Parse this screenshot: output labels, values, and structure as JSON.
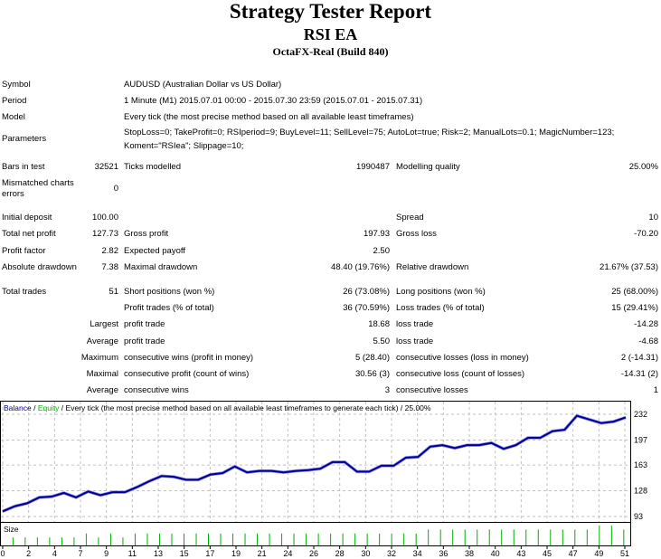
{
  "header": {
    "title": "Strategy Tester Report",
    "subtitle": "RSI EA",
    "server": "OctaFX-Real (Build 840)"
  },
  "info": [
    {
      "label": "Symbol",
      "value": "AUDUSD (Australian Dollar vs US Dollar)"
    },
    {
      "label": "Period",
      "value": "1 Minute (M1) 2015.07.01 00:00 - 2015.07.30 23:59 (2015.07.01 - 2015.07.31)"
    },
    {
      "label": "Model",
      "value": "Every tick (the most precise method based on all available least timeframes)"
    },
    {
      "label": "Parameters",
      "value": "StopLoss=0; TakeProfit=0; RSIperiod=9; BuyLevel=11; SellLevel=75; AutoLot=true; Risk=2; ManualLots=0.1; MagicNumber=123;",
      "value2": "Koment=\"RSIea\"; Slippage=10;"
    }
  ],
  "stats": [
    {
      "c1l": "Bars in test",
      "c1v": "32521",
      "c2l": "Ticks modelled",
      "c2v": "1990487",
      "c3l": "Modelling quality",
      "c3v": "25.00%"
    },
    {
      "c1l": "Mismatched charts",
      "c1l2": "errors",
      "c1v": "0"
    },
    {
      "c1l": "Initial deposit",
      "c1v": "100.00",
      "c3l": "Spread",
      "c3v": "10"
    },
    {
      "c1l": "Total net profit",
      "c1v": "127.73",
      "c2l": "Gross profit",
      "c2v": "197.93",
      "c3l": "Gross loss",
      "c3v": "-70.20"
    },
    {
      "c1l": "Profit factor",
      "c1v": "2.82",
      "c2l": "Expected payoff",
      "c2v": "2.50"
    },
    {
      "c1l": "Absolute drawdown",
      "c1v": "7.38",
      "c2l": "Maximal drawdown",
      "c2v": "48.40 (19.76%)",
      "c3l": "Relative drawdown",
      "c3v": "21.67% (37.53)"
    },
    {
      "c1l": "Total trades",
      "c1v": "51",
      "c2l": "Short positions (won %)",
      "c2v": "26 (73.08%)",
      "c3l": "Long positions (won %)",
      "c3v": "25 (68.00%)"
    },
    {
      "c2l": "Profit trades (% of total)",
      "c2v": "36 (70.59%)",
      "c3l": "Loss trades (% of total)",
      "c3v": "15 (29.41%)"
    },
    {
      "c1r": "Largest",
      "c2l": "profit trade",
      "c2v": "18.68",
      "c3l": "loss trade",
      "c3v": "-14.28"
    },
    {
      "c1r": "Average",
      "c2l": "profit trade",
      "c2v": "5.50",
      "c3l": "loss trade",
      "c3v": "-4.68"
    },
    {
      "c1r": "Maximum",
      "c2l": "consecutive wins (profit in money)",
      "c2v": "5 (28.40)",
      "c3l": "consecutive losses (loss in money)",
      "c3v": "2 (-14.31)"
    },
    {
      "c1r": "Maximal",
      "c2l": "consecutive profit (count of wins)",
      "c2v": "30.56 (3)",
      "c3l": "consecutive loss (count of losses)",
      "c3v": "-14.31 (2)"
    },
    {
      "c1r": "Average",
      "c2l": "consecutive wins",
      "c2v": "3",
      "c3l": "consecutive losses",
      "c3v": "1"
    }
  ],
  "chart_data": {
    "type": "line",
    "legend": {
      "balance": "Balance",
      "sep": " / ",
      "equity": "Equity",
      "rest": " / Every tick (the most precise method based on all available least timeframes to generate each tick) / 25.00%"
    },
    "size_label": "Size",
    "colors": {
      "balance": "#00008b",
      "equity": "#00b000",
      "size": "#00b000",
      "grid": "#c0c0c0"
    },
    "y_ticks": [
      93,
      128,
      163,
      197,
      232
    ],
    "ylim": [
      93,
      232
    ],
    "x_tick_labels": [
      "0",
      "2",
      "4",
      "7",
      "9",
      "11",
      "13",
      "15",
      "17",
      "19",
      "21",
      "24",
      "26",
      "28",
      "30",
      "32",
      "34",
      "36",
      "38",
      "40",
      "43",
      "45",
      "47",
      "49",
      "51"
    ],
    "xlim": [
      0,
      51
    ],
    "balance": [
      100,
      107,
      111,
      119,
      120,
      125,
      119,
      127,
      122,
      126,
      126,
      133,
      141,
      148,
      147,
      143,
      143,
      150,
      152,
      161,
      153,
      155,
      155,
      153,
      155,
      156,
      158,
      167,
      167,
      154,
      154,
      162,
      162,
      173,
      174,
      188,
      190,
      186,
      190,
      190,
      193,
      185,
      190,
      200,
      200,
      209,
      211,
      230,
      225,
      220,
      222,
      227.73
    ],
    "size_relative": [
      2,
      2,
      2,
      2,
      2,
      2,
      3,
      2,
      3,
      2,
      3,
      3,
      3,
      3,
      3,
      3,
      3,
      3,
      3,
      3,
      3,
      3,
      3,
      3,
      3,
      3,
      3,
      3,
      3,
      3,
      3,
      3,
      3,
      3,
      4,
      4,
      4,
      4,
      4,
      4,
      4,
      4,
      4,
      4,
      4,
      4,
      4,
      4,
      5,
      5,
      4
    ]
  }
}
